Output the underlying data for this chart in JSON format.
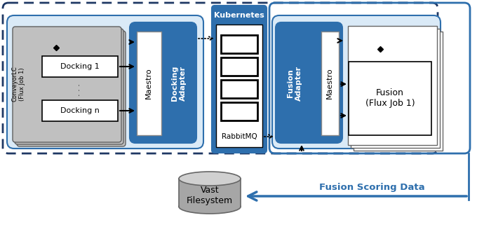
{
  "bg_color": "#ffffff",
  "dashed_border_color": "#1f3864",
  "blue_dark": "#2e6fad",
  "blue_header": "#4472c4",
  "light_blue": "#cce4f7",
  "lighter_blue": "#daeaf7",
  "gray_dark": "#808080",
  "gray_mid": "#a6a6a6",
  "gray_light": "#c0c0c0",
  "white": "#ffffff",
  "black": "#000000",
  "kubernetes_label": "Kubernetes",
  "rabbitmq_label": "RabbitMQ",
  "docking_adapter_label": "Docking\nAdapter",
  "maestro_docking_label": "Maestro",
  "fusion_adapter_label": "Fusion\nAdapter",
  "maestro_fusion_label": "Maestro",
  "conveyor_label": "ConveyorLC\n(Flux Job 1)",
  "docking1_label": "Docking 1",
  "dockingn_label": "Docking n",
  "fusion_label": "Fusion\n(Flux Job 1)",
  "vast_label": "Vast\nFilesystem",
  "fusion_scoring_label": "Fusion Scoring Data"
}
